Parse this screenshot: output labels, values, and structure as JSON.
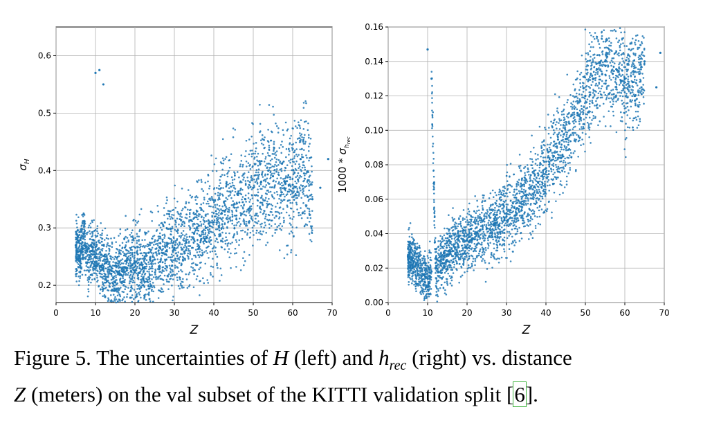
{
  "caption": {
    "prefix": "Figure 5. The uncertainties of ",
    "var_h": "H",
    "mid1": " (left) and ",
    "var_hrec": "h",
    "var_hrec_sub": "rec",
    "mid2": " (right) vs. distance",
    "var_z": "Z",
    "mid3": " (meters) on the val subset of the KITTI validation split [",
    "cite": "6",
    "suffix": "]."
  },
  "chart_data": [
    {
      "type": "scatter",
      "title": "",
      "xlabel": "Z",
      "ylabel": "σ_H",
      "xlim": [
        0,
        70
      ],
      "ylim": [
        0.17,
        0.65
      ],
      "xticks": [
        0,
        10,
        20,
        30,
        40,
        50,
        60,
        70
      ],
      "yticks": [
        0.2,
        0.3,
        0.4,
        0.5,
        0.6
      ],
      "ytick_labels": [
        "0.2",
        "0.3",
        "0.4",
        "0.5",
        "0.6"
      ],
      "grid": true,
      "color": "#1f77b4",
      "series": [
        {
          "points": [
            [
              5,
              0.27
            ],
            [
              6,
              0.25
            ],
            [
              7,
              0.29
            ],
            [
              8,
              0.24
            ],
            [
              9,
              0.26
            ],
            [
              10,
              0.25
            ],
            [
              10,
              0.57
            ],
            [
              11,
              0.575
            ],
            [
              12,
              0.55
            ],
            [
              12,
              0.23
            ],
            [
              14,
              0.22
            ],
            [
              15,
              0.205
            ],
            [
              16,
              0.22
            ],
            [
              18,
              0.23
            ],
            [
              20,
              0.24
            ],
            [
              22,
              0.23
            ],
            [
              25,
              0.245
            ],
            [
              28,
              0.26
            ],
            [
              30,
              0.265
            ],
            [
              33,
              0.275
            ],
            [
              35,
              0.29
            ],
            [
              38,
              0.3
            ],
            [
              40,
              0.31
            ],
            [
              42,
              0.325
            ],
            [
              45,
              0.34
            ],
            [
              48,
              0.35
            ],
            [
              50,
              0.37
            ],
            [
              52,
              0.38
            ],
            [
              55,
              0.39
            ],
            [
              58,
              0.38
            ],
            [
              60,
              0.375
            ],
            [
              62,
              0.42
            ],
            [
              65,
              0.35
            ],
            [
              67,
              0.37
            ],
            [
              69,
              0.42
            ]
          ]
        }
      ]
    },
    {
      "type": "scatter",
      "title": "",
      "xlabel": "Z",
      "ylabel": "1000 * σ_h_rec",
      "xlim": [
        0,
        70
      ],
      "ylim": [
        0,
        0.16
      ],
      "xticks": [
        0,
        10,
        20,
        30,
        40,
        50,
        60,
        70
      ],
      "yticks": [
        0.0,
        0.02,
        0.04,
        0.06,
        0.08,
        0.1,
        0.12,
        0.14,
        0.16
      ],
      "ytick_labels": [
        "0.00",
        "0.02",
        "0.04",
        "0.06",
        "0.08",
        "0.10",
        "0.12",
        "0.14",
        "0.16"
      ],
      "grid": true,
      "color": "#1f77b4",
      "series": [
        {
          "points": [
            [
              5,
              0.027
            ],
            [
              7,
              0.022
            ],
            [
              8,
              0.02
            ],
            [
              9,
              0.016
            ],
            [
              10,
              0.014
            ],
            [
              11,
              0.018
            ],
            [
              10,
              0.147
            ],
            [
              11,
              0.13
            ],
            [
              12,
              0.02
            ],
            [
              14,
              0.025
            ],
            [
              15,
              0.028
            ],
            [
              17,
              0.032
            ],
            [
              20,
              0.036
            ],
            [
              22,
              0.04
            ],
            [
              25,
              0.043
            ],
            [
              28,
              0.045
            ],
            [
              30,
              0.05
            ],
            [
              32,
              0.055
            ],
            [
              35,
              0.062
            ],
            [
              38,
              0.07
            ],
            [
              40,
              0.078
            ],
            [
              42,
              0.085
            ],
            [
              45,
              0.095
            ],
            [
              48,
              0.11
            ],
            [
              50,
              0.12
            ],
            [
              52,
              0.13
            ],
            [
              55,
              0.14
            ],
            [
              58,
              0.135
            ],
            [
              60,
              0.13
            ],
            [
              62,
              0.128
            ],
            [
              65,
              0.14
            ],
            [
              68,
              0.125
            ],
            [
              69,
              0.145
            ]
          ]
        }
      ]
    }
  ]
}
